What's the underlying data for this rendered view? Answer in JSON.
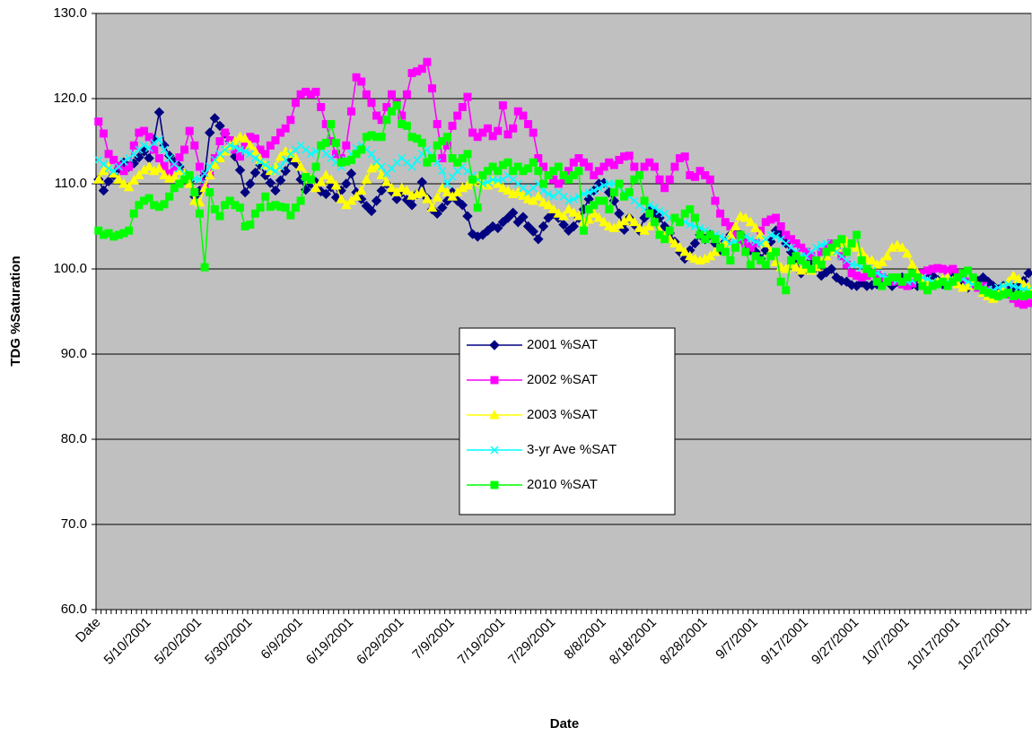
{
  "chart_data": {
    "type": "line",
    "x_label": "Date",
    "y_label": "TDG %Saturation",
    "categories": [
      "Date",
      null,
      null,
      null,
      null,
      null,
      null,
      null,
      null,
      null,
      "5/10/2001",
      null,
      null,
      null,
      null,
      null,
      null,
      null,
      null,
      null,
      "5/20/2001",
      null,
      null,
      null,
      null,
      null,
      null,
      null,
      null,
      null,
      "5/30/2001",
      null,
      null,
      null,
      null,
      null,
      null,
      null,
      null,
      null,
      "6/9/2001",
      null,
      null,
      null,
      null,
      null,
      null,
      null,
      null,
      null,
      "6/19/2001",
      null,
      null,
      null,
      null,
      null,
      null,
      null,
      null,
      null,
      "6/29/2001",
      null,
      null,
      null,
      null,
      null,
      null,
      null,
      null,
      null,
      "7/9/2001",
      null,
      null,
      null,
      null,
      null,
      null,
      null,
      null,
      null,
      "7/19/2001",
      null,
      null,
      null,
      null,
      null,
      null,
      null,
      null,
      null,
      "7/29/2001",
      null,
      null,
      null,
      null,
      null,
      null,
      null,
      null,
      null,
      "8/8/2001",
      null,
      null,
      null,
      null,
      null,
      null,
      null,
      null,
      null,
      "8/18/2001",
      null,
      null,
      null,
      null,
      null,
      null,
      null,
      null,
      null,
      "8/28/2001",
      null,
      null,
      null,
      null,
      null,
      null,
      null,
      null,
      null,
      "9/7/2001",
      null,
      null,
      null,
      null,
      null,
      null,
      null,
      null,
      null,
      "9/17/2001",
      null,
      null,
      null,
      null,
      null,
      null,
      null,
      null,
      null,
      "9/27/2001",
      null,
      null,
      null,
      null,
      null,
      null,
      null,
      null,
      null,
      "10/7/2001",
      null,
      null,
      null,
      null,
      null,
      null,
      null,
      null,
      null,
      "10/17/2001",
      null,
      null,
      null,
      null,
      null,
      null,
      null,
      null,
      null,
      "10/27/2001",
      null,
      null,
      null,
      null
    ],
    "ylim": [
      60,
      130
    ],
    "yticks": [
      {
        "value": 60,
        "label": "60.0"
      },
      {
        "value": 70,
        "label": "70.0"
      },
      {
        "value": 80,
        "label": "80.0"
      },
      {
        "value": 90,
        "label": "90.0"
      },
      {
        "value": 100,
        "label": "100.0"
      },
      {
        "value": 110,
        "label": "110.0"
      },
      {
        "value": 120,
        "label": "120.0"
      },
      {
        "value": 130,
        "label": "130.0"
      }
    ],
    "grid": true,
    "legend": "center",
    "background": "#c0c0c0",
    "series": [
      {
        "name": "2001 %SAT",
        "color": "#000080",
        "marker": "diamond",
        "values": [
          110.5,
          109.2,
          110.3,
          111.0,
          111.8,
          112.5,
          112.0,
          112.4,
          113.1,
          113.8,
          113.0,
          115.2,
          118.4,
          114.5,
          113.3,
          112.6,
          112.0,
          111.2,
          110.3,
          108.5,
          109.2,
          111.0,
          116.0,
          117.7,
          116.8,
          115.9,
          115.0,
          113.2,
          111.6,
          109.0,
          110.0,
          111.3,
          112.2,
          111.0,
          110.1,
          109.2,
          110.4,
          111.5,
          112.8,
          112.4,
          110.5,
          109.3,
          110.0,
          110.2,
          109.1,
          108.8,
          109.6,
          108.4,
          109.2,
          110.0,
          111.2,
          109.0,
          108.2,
          107.4,
          106.8,
          108.0,
          109.2,
          110.0,
          109.1,
          108.2,
          109.0,
          108.1,
          107.5,
          108.8,
          110.2,
          108.3,
          107.0,
          106.5,
          107.2,
          108.0,
          109.0,
          108.0,
          107.5,
          106.2,
          104.1,
          103.8,
          104.0,
          104.5,
          105.0,
          104.8,
          105.5,
          106.0,
          106.6,
          105.5,
          106.1,
          105.0,
          104.4,
          103.5,
          105.0,
          106.0,
          106.5,
          106.0,
          105.2,
          104.5,
          105.0,
          106.0,
          107.0,
          108.2,
          109.2,
          110.0,
          110.1,
          109.0,
          108.0,
          106.5,
          104.6,
          106.0,
          105.2,
          104.5,
          106.0,
          107.0,
          106.5,
          106.0,
          105.0,
          104.2,
          103.2,
          102.0,
          101.2,
          102.2,
          103.0,
          104.0,
          103.5,
          104.0,
          103.0,
          102.2,
          103.2,
          104.0,
          104.4,
          104.0,
          103.0,
          102.2,
          102.0,
          101.2,
          102.2,
          103.2,
          104.5,
          104.0,
          103.0,
          102.0,
          101.0,
          99.5,
          100.0,
          101.0,
          100.2,
          99.2,
          99.6,
          100.0,
          99.0,
          98.6,
          98.5,
          98.1,
          98.0,
          98.4,
          98.0,
          98.1,
          98.2,
          98.4,
          98.6,
          98.0,
          98.5,
          99.0,
          98.6,
          98.2,
          98.0,
          98.4,
          98.8,
          99.2,
          98.7,
          98.2,
          98.5,
          99.0,
          98.6,
          98.0,
          97.8,
          98.2,
          98.6,
          99.0,
          98.5,
          98.0,
          97.6,
          98.0,
          98.2,
          97.8,
          98.0,
          98.6,
          99.5
        ]
      },
      {
        "name": "2002 %SAT",
        "color": "#ff00ff",
        "marker": "square",
        "values": [
          117.3,
          115.9,
          113.5,
          112.8,
          112.1,
          111.5,
          112.0,
          114.5,
          116.0,
          116.2,
          115.5,
          114.0,
          113.0,
          112.1,
          111.2,
          112.0,
          113.1,
          114.0,
          116.2,
          114.5,
          112.0,
          109.5,
          111.0,
          113.0,
          115.0,
          116.0,
          115.1,
          114.0,
          113.2,
          114.5,
          115.5,
          115.3,
          114.0,
          113.5,
          114.5,
          115.1,
          116.0,
          116.5,
          117.5,
          119.5,
          120.5,
          120.8,
          120.5,
          120.8,
          119.0,
          117.0,
          115.0,
          113.5,
          113.0,
          114.5,
          118.5,
          122.5,
          122.0,
          120.5,
          119.5,
          118.0,
          117.5,
          119.0,
          120.5,
          119.5,
          118.0,
          120.5,
          123.0,
          123.2,
          123.5,
          124.3,
          121.2,
          117.0,
          113.0,
          114.5,
          116.8,
          118.0,
          119.0,
          120.2,
          116.0,
          115.5,
          116.0,
          116.5,
          115.6,
          116.2,
          119.2,
          115.8,
          116.5,
          118.5,
          118.0,
          117.0,
          116.0,
          113.0,
          112.0,
          111.0,
          110.5,
          110.0,
          110.5,
          111.5,
          112.5,
          113.0,
          112.5,
          112.0,
          111.0,
          111.5,
          112.0,
          112.5,
          112.2,
          112.8,
          113.2,
          113.3,
          112.0,
          111.0,
          112.0,
          112.5,
          112.0,
          110.5,
          109.5,
          110.5,
          112.0,
          113.0,
          113.2,
          111.0,
          110.8,
          111.5,
          111.0,
          110.5,
          108.0,
          106.5,
          105.5,
          105.0,
          104.0,
          103.5,
          103.0,
          102.5,
          103.0,
          104.5,
          105.5,
          105.8,
          106.0,
          105.0,
          104.0,
          103.5,
          103.0,
          102.5,
          102.0,
          101.5,
          101.0,
          102.0,
          102.5,
          103.0,
          102.5,
          101.5,
          100.5,
          99.5,
          99.2,
          99.0,
          99.2,
          99.5,
          99.3,
          99.0,
          98.8,
          98.5,
          98.6,
          98.2,
          98.0,
          98.3,
          99.0,
          99.5,
          99.8,
          100.0,
          100.1,
          100.0,
          99.8,
          100.0,
          99.5,
          99.0,
          98.5,
          98.0,
          97.8,
          98.0,
          97.5,
          97.2,
          97.0,
          97.5,
          97.0,
          96.5,
          96.0,
          95.8,
          96.0
        ]
      },
      {
        "name": "2003 %SAT",
        "color": "#ffff00",
        "marker": "triangle",
        "values": [
          110.5,
          111.5,
          112.0,
          111.2,
          110.5,
          110.0,
          109.6,
          110.4,
          111.0,
          111.6,
          112.0,
          111.5,
          111.8,
          111.0,
          110.6,
          110.8,
          111.5,
          111.2,
          110.0,
          108.0,
          107.8,
          109.5,
          111.0,
          112.2,
          113.0,
          113.8,
          114.5,
          115.0,
          115.5,
          115.3,
          114.5,
          113.8,
          112.8,
          112.2,
          111.5,
          112.0,
          113.2,
          113.8,
          113.5,
          113.0,
          112.0,
          111.0,
          110.5,
          109.5,
          110.2,
          111.0,
          110.5,
          109.8,
          108.2,
          107.5,
          108.0,
          108.5,
          109.2,
          110.5,
          111.8,
          112.0,
          111.0,
          110.2,
          109.5,
          109.0,
          109.5,
          109.2,
          108.6,
          108.8,
          109.0,
          108.2,
          107.2,
          108.4,
          109.5,
          109.0,
          108.5,
          109.0,
          109.5,
          109.8,
          110.2,
          110.5,
          110.0,
          109.8,
          110.4,
          110.0,
          109.5,
          109.2,
          108.8,
          109.0,
          108.6,
          108.2,
          108.0,
          108.5,
          107.8,
          107.5,
          107.0,
          106.5,
          106.2,
          107.0,
          106.6,
          106.2,
          105.5,
          105.8,
          106.5,
          106.0,
          105.5,
          105.0,
          104.8,
          105.2,
          105.6,
          106.0,
          105.5,
          104.8,
          104.5,
          105.0,
          105.5,
          104.5,
          103.8,
          103.5,
          103.0,
          102.5,
          102.0,
          101.5,
          101.2,
          101.0,
          101.2,
          101.5,
          102.0,
          102.5,
          103.0,
          104.0,
          105.0,
          106.2,
          106.0,
          105.5,
          104.8,
          104.0,
          103.0,
          102.0,
          100.8,
          100.2,
          100.0,
          100.5,
          100.2,
          99.8,
          100.0,
          99.8,
          100.2,
          100.8,
          101.5,
          102.0,
          102.5,
          103.0,
          103.2,
          102.8,
          102.5,
          102.0,
          101.2,
          101.0,
          100.5,
          100.8,
          101.5,
          102.5,
          102.8,
          102.5,
          101.8,
          100.5,
          99.5,
          98.8,
          98.5,
          98.2,
          98.5,
          98.8,
          99.0,
          98.6,
          98.2,
          97.8,
          98.0,
          98.5,
          98.0,
          97.2,
          96.8,
          96.5,
          97.0,
          97.8,
          98.5,
          99.2,
          98.8,
          98.2,
          97.8
        ]
      },
      {
        "name": "3-yr Ave %SAT",
        "color": "#00ffff",
        "marker": "x",
        "values": [
          112.8,
          112.3,
          111.8,
          111.5,
          112.0,
          112.6,
          113.0,
          113.5,
          114.0,
          114.5,
          114.2,
          114.8,
          115.2,
          114.0,
          113.0,
          112.3,
          111.8,
          111.2,
          110.9,
          110.6,
          110.5,
          111.2,
          112.0,
          112.8,
          113.5,
          114.0,
          114.5,
          114.3,
          114.0,
          113.8,
          113.5,
          113.0,
          112.6,
          112.2,
          111.8,
          111.5,
          112.0,
          112.8,
          113.5,
          114.0,
          114.5,
          114.0,
          113.5,
          113.8,
          114.2,
          113.5,
          113.0,
          112.5,
          112.0,
          112.8,
          113.5,
          114.2,
          114.5,
          114.0,
          113.5,
          112.6,
          112.0,
          111.2,
          111.8,
          112.5,
          113.0,
          112.5,
          112.0,
          112.8,
          113.5,
          114.0,
          113.2,
          112.5,
          111.5,
          110.0,
          110.8,
          111.5,
          112.0,
          111.5,
          111.0,
          110.5,
          110.0,
          110.2,
          110.5,
          110.4,
          110.5,
          111.0,
          110.5,
          110.0,
          109.5,
          109.0,
          109.5,
          110.0,
          109.2,
          108.8,
          108.5,
          109.0,
          108.5,
          108.0,
          108.2,
          108.5,
          108.8,
          109.0,
          109.2,
          109.5,
          109.8,
          110.0,
          110.0,
          109.6,
          109.0,
          108.5,
          108.0,
          107.5,
          107.0,
          107.5,
          107.2,
          106.8,
          106.5,
          106.0,
          105.8,
          105.5,
          105.5,
          105.2,
          105.0,
          104.8,
          104.5,
          104.2,
          104.0,
          103.8,
          103.5,
          103.0,
          103.2,
          103.5,
          103.8,
          103.5,
          103.2,
          103.0,
          103.5,
          104.0,
          103.8,
          103.5,
          103.0,
          102.5,
          102.0,
          101.5,
          101.5,
          102.0,
          102.5,
          102.8,
          103.0,
          102.5,
          102.0,
          101.5,
          101.0,
          100.5,
          100.5,
          100.2,
          100.0,
          99.8,
          99.5,
          99.2,
          99.0,
          98.8,
          98.6,
          98.5,
          98.5,
          98.6,
          98.8,
          99.0,
          98.8,
          98.5,
          98.3,
          98.2,
          98.5,
          98.8,
          99.0,
          98.8,
          98.5,
          98.2,
          98.0,
          97.8,
          97.6,
          97.5,
          97.8,
          98.0,
          98.2,
          98.0,
          97.8,
          97.6,
          97.5
        ]
      },
      {
        "name": "2010 %SAT",
        "color": "#00ff00",
        "marker": "square",
        "values": [
          104.5,
          104.0,
          104.2,
          103.8,
          104.0,
          104.2,
          104.5,
          106.5,
          107.5,
          108.0,
          108.3,
          107.5,
          107.3,
          107.6,
          108.5,
          109.5,
          110.0,
          110.5,
          111.0,
          109.0,
          106.5,
          100.2,
          109.0,
          107.0,
          106.2,
          107.5,
          108.0,
          107.5,
          107.2,
          105.0,
          105.2,
          106.5,
          107.2,
          108.5,
          107.3,
          107.5,
          107.3,
          107.2,
          106.3,
          107.2,
          108.0,
          110.8,
          110.5,
          112.0,
          114.5,
          114.8,
          117.0,
          114.8,
          112.5,
          112.6,
          112.8,
          113.5,
          114.0,
          115.5,
          115.7,
          115.5,
          115.5,
          117.5,
          118.5,
          119.2,
          117.0,
          116.8,
          115.5,
          115.3,
          114.8,
          112.5,
          113.0,
          114.5,
          115.0,
          115.5,
          113.0,
          112.5,
          113.0,
          113.5,
          110.5,
          107.2,
          111.0,
          111.5,
          112.0,
          111.5,
          112.2,
          112.5,
          111.5,
          112.0,
          111.5,
          111.8,
          112.5,
          111.5,
          110.0,
          111.0,
          111.5,
          112.0,
          111.0,
          110.5,
          111.0,
          111.5,
          104.5,
          107.0,
          107.5,
          108.0,
          108.0,
          107.0,
          109.0,
          110.0,
          108.5,
          109.0,
          110.5,
          111.0,
          108.0,
          106.5,
          105.5,
          104.0,
          103.5,
          104.5,
          106.0,
          105.5,
          106.5,
          107.0,
          106.0,
          104.0,
          103.5,
          104.0,
          103.5,
          102.5,
          102.0,
          101.0,
          102.5,
          104.0,
          102.0,
          100.5,
          101.5,
          101.0,
          100.5,
          101.5,
          102.0,
          98.5,
          97.5,
          101.0,
          101.5,
          101.0,
          100.5,
          100.0,
          101.0,
          100.5,
          102.0,
          102.5,
          103.0,
          103.5,
          102.0,
          103.0,
          104.0,
          101.0,
          100.0,
          99.5,
          98.5,
          98.0,
          98.5,
          99.0,
          99.0,
          98.5,
          99.0,
          99.5,
          99.0,
          98.0,
          97.5,
          98.0,
          98.2,
          98.5,
          98.0,
          98.5,
          99.0,
          99.5,
          99.8,
          99.0,
          98.0,
          97.5,
          97.2,
          97.0,
          96.8,
          97.0,
          97.2,
          96.8,
          97.0,
          96.8,
          97.0
        ]
      }
    ]
  }
}
